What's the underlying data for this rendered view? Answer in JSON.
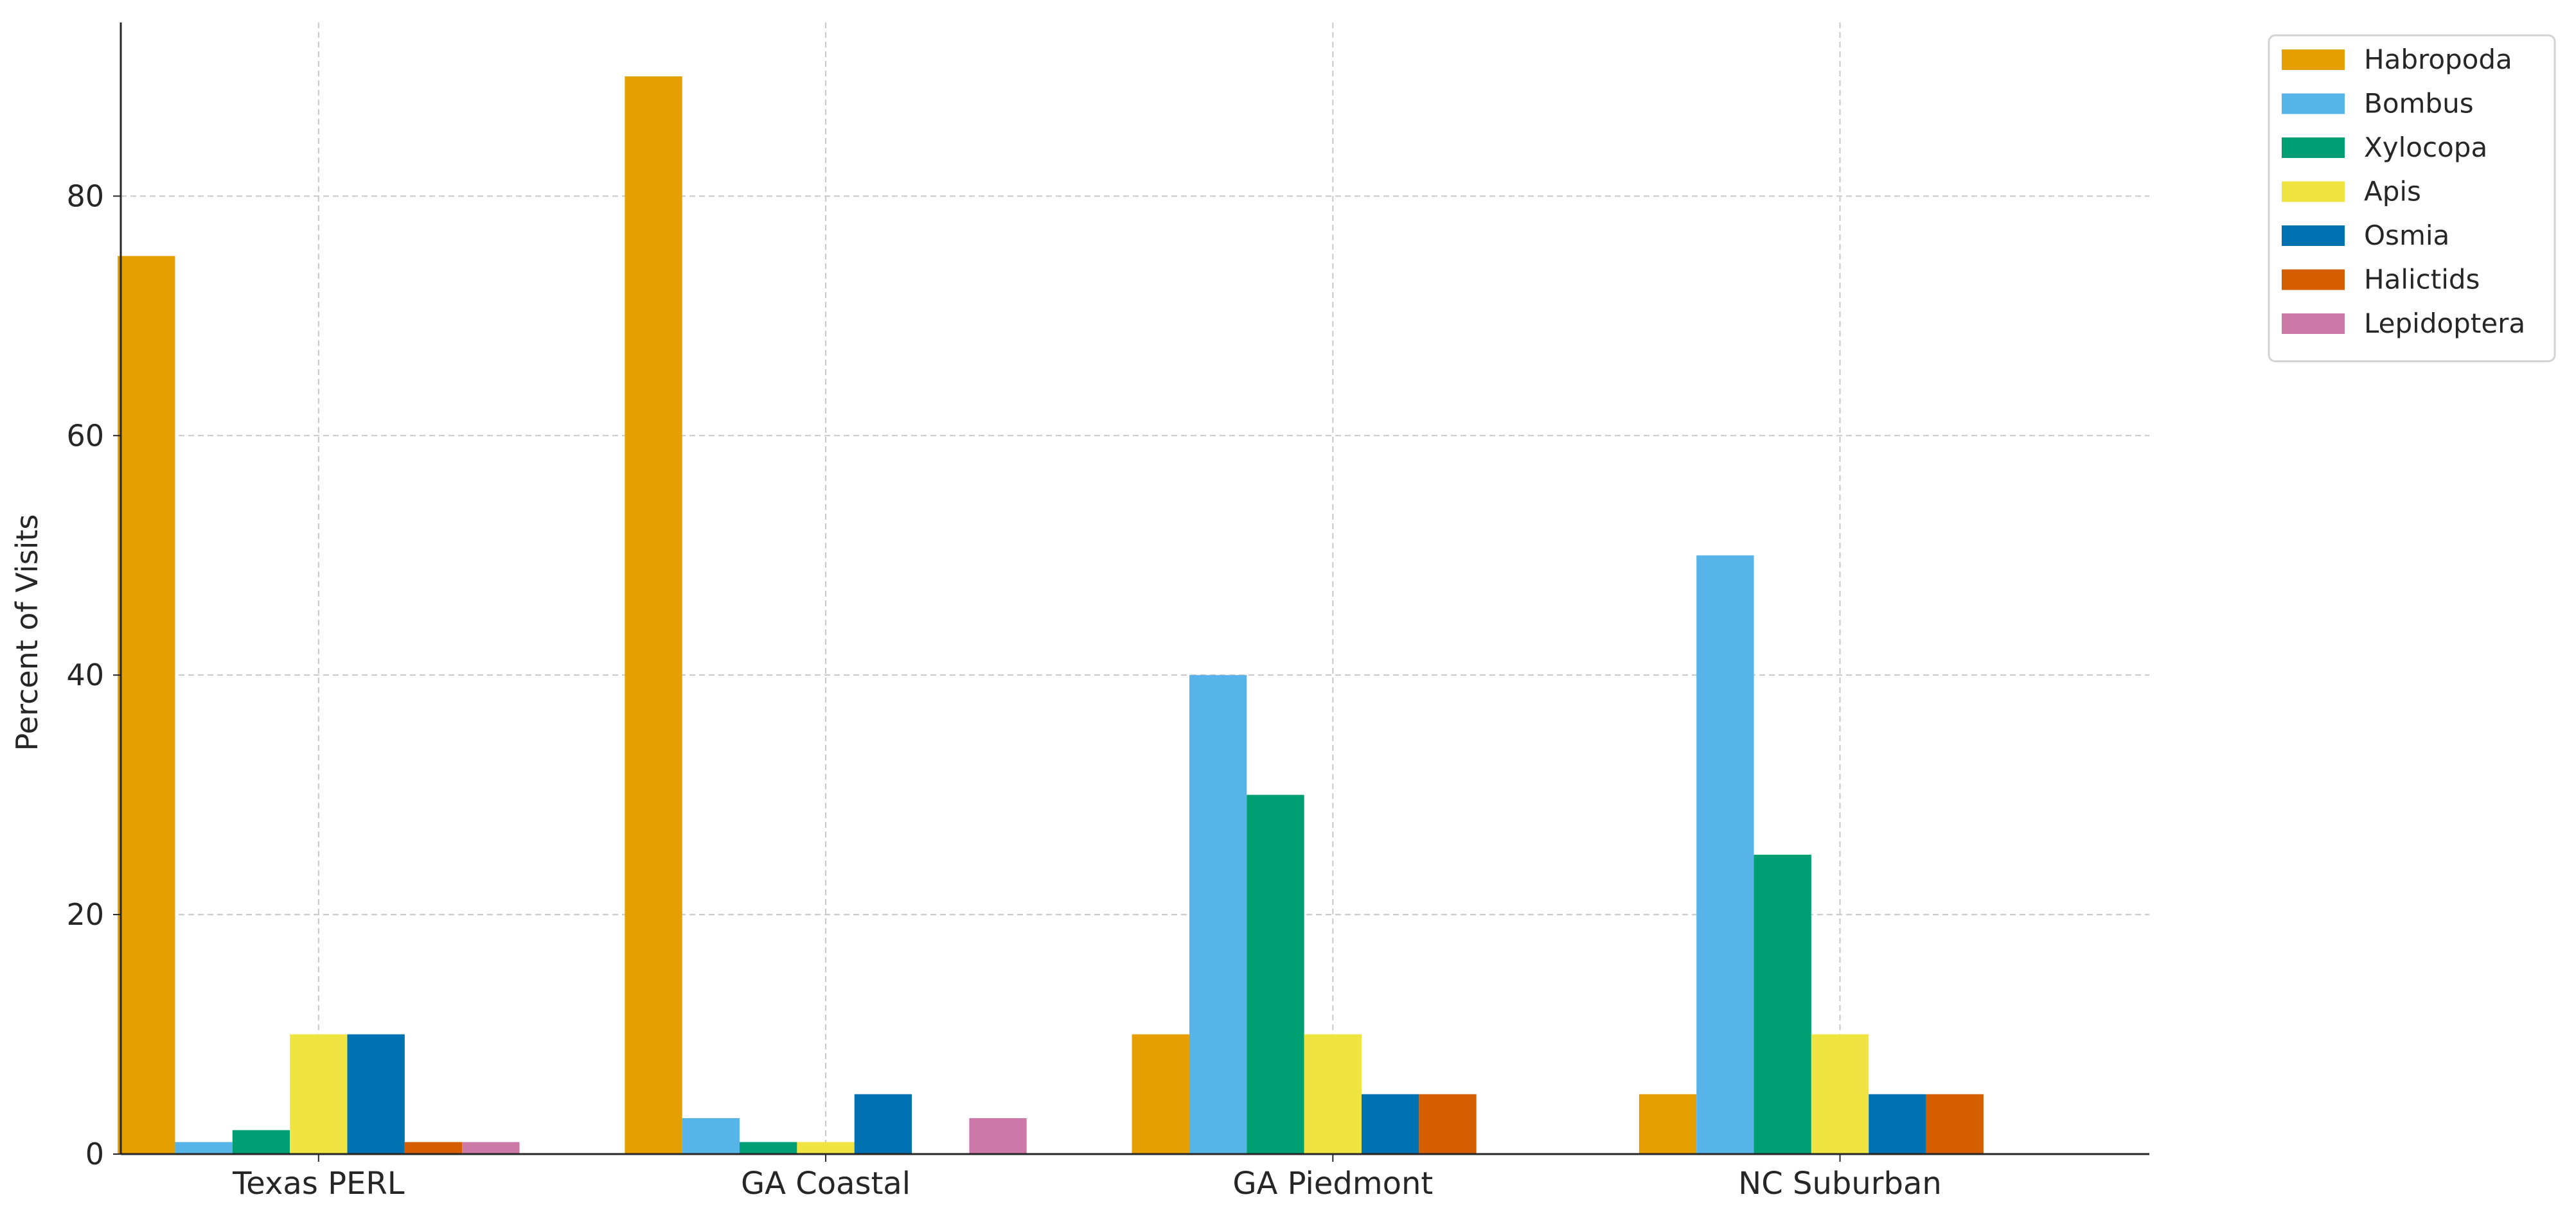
{
  "chart_data": {
    "type": "bar",
    "title": "",
    "xlabel": "",
    "ylabel": "Percent of Visits",
    "categories": [
      "Texas PERL",
      "GA Coastal",
      "GA Piedmont",
      "NC Suburban"
    ],
    "ylim": [
      0,
      94.5
    ],
    "yticks": [
      0,
      20,
      40,
      60,
      80
    ],
    "grid": true,
    "legend_position": "outside top-right",
    "series": [
      {
        "name": "Habropoda",
        "color": "#E69F00",
        "values": [
          75,
          90,
          10,
          5
        ]
      },
      {
        "name": "Bombus",
        "color": "#56B4E9",
        "values": [
          1,
          3,
          40,
          50
        ]
      },
      {
        "name": "Xylocopa",
        "color": "#009E73",
        "values": [
          2,
          1,
          30,
          25
        ]
      },
      {
        "name": "Apis",
        "color": "#F0E442",
        "values": [
          10,
          1,
          10,
          10
        ]
      },
      {
        "name": "Osmia",
        "color": "#0072B2",
        "values": [
          10,
          5,
          5,
          5
        ]
      },
      {
        "name": "Halictids",
        "color": "#D55E00",
        "values": [
          1,
          0,
          5,
          5
        ]
      },
      {
        "name": "Lepidoptera",
        "color": "#CC79A7",
        "values": [
          1,
          3,
          0,
          0
        ]
      }
    ]
  }
}
